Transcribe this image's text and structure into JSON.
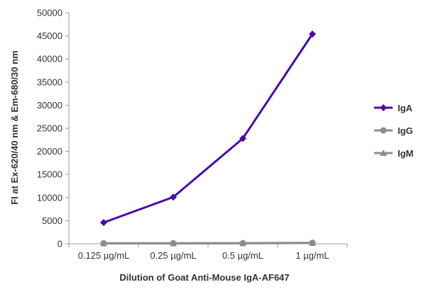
{
  "chart_data": {
    "type": "line",
    "categories": [
      "0.125 µg/mL",
      "0.25 µg/mL",
      "0.5 µg/mL",
      "1 µg/mL"
    ],
    "series": [
      {
        "name": "IgA",
        "values": [
          4600,
          10100,
          22800,
          45400
        ],
        "color": "#4B0BA8",
        "marker": "diamond"
      },
      {
        "name": "IgG",
        "values": [
          120,
          120,
          130,
          220
        ],
        "color": "#8C8C8C",
        "marker": "circle"
      },
      {
        "name": "IgM",
        "values": [
          100,
          100,
          110,
          180
        ],
        "color": "#8C8C8C",
        "marker": "triangle"
      }
    ],
    "xlabel": "Dilution of Goat Anti-Mouse IgA-AF647",
    "ylabel": "FI at Ex-620/40 nm & Em-680/30 nm",
    "ylim": [
      0,
      50000
    ],
    "yticks": [
      0,
      5000,
      10000,
      15000,
      20000,
      25000,
      30000,
      35000,
      40000,
      45000,
      50000
    ],
    "grid": false,
    "legend": "right"
  }
}
